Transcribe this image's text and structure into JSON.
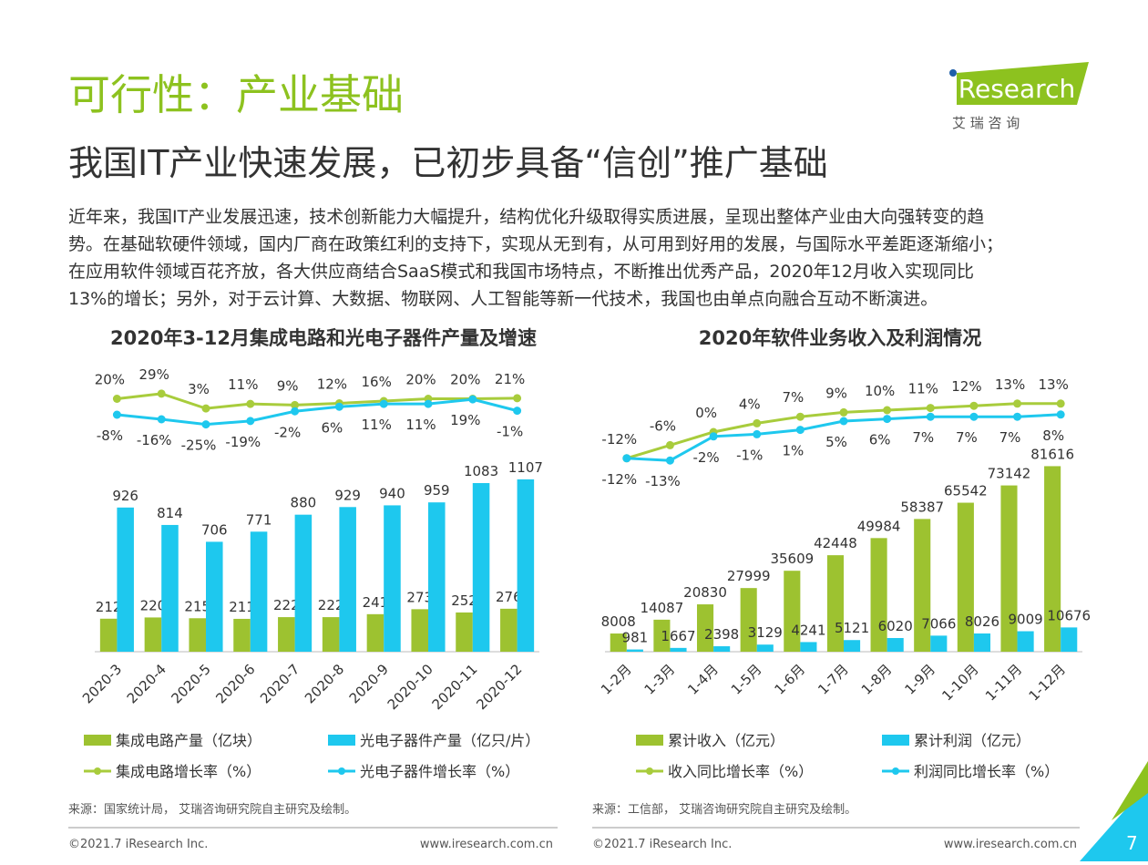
{
  "header": {
    "title": "可行性：产业基础",
    "subtitle": "我国IT产业快速发展，已初步具备“信创”推广基础",
    "body": [
      "近年来，我国IT产业发展迅速，技术创新能力大幅提升，结构优化升级取得实质进展，呈现出整体产业由大向强转变的趋",
      "势。在基础软硬件领域，国内厂商在政策红利的支持下，实现从无到有，从可用到好用的发展，与国际水平差距逐渐缩小；",
      "在应用软件领域百花齐放，各大供应商结合SaaS模式和我国市场特点，不断推出优秀产品，2020年12月收入实现同比",
      "13%的增长；另外，对于云计算、大数据、物联网、人工智能等新一代技术，我国也由单点向融合互动不断演进。"
    ]
  },
  "logo": {
    "brand": "iResearch",
    "name": "艾 瑞 咨 询"
  },
  "chart_data": [
    {
      "type": "bar",
      "title": "2020年3-12月集成电路和光电子器件产量及增速",
      "categories": [
        "2020-3",
        "2020-4",
        "2020-5",
        "2020-6",
        "2020-7",
        "2020-8",
        "2020-9",
        "2020-10",
        "2020-11",
        "2020-12"
      ],
      "ylim": [
        0,
        1200
      ],
      "y2lim": [
        -80,
        80
      ],
      "series": [
        {
          "name": "集成电路产量（亿块）",
          "type": "bar",
          "color": "#9dc230",
          "values": [
            212,
            220,
            215,
            211,
            222,
            222,
            241,
            273,
            252,
            276
          ]
        },
        {
          "name": "光电子器件产量（亿只/片）",
          "type": "bar",
          "color": "#1ec8ee",
          "values": [
            926,
            814,
            706,
            771,
            880,
            929,
            940,
            959,
            1083,
            1107
          ]
        },
        {
          "name": "集成电路增长率（%）",
          "type": "line",
          "axis": "y2",
          "color": "#a8cc3c",
          "values": [
            20,
            29,
            3,
            11,
            9,
            12,
            16,
            20,
            20,
            21
          ],
          "value_labels": [
            "20%",
            "29%",
            "3%",
            "11%",
            "9%",
            "12%",
            "16%",
            "20%",
            "20%",
            "21%"
          ]
        },
        {
          "name": "光电子器件增长率（%）",
          "type": "line",
          "axis": "y2",
          "color": "#1ec8ee",
          "values": [
            -8,
            -16,
            -25,
            -19,
            -2,
            6,
            11,
            11,
            19,
            -1
          ],
          "value_labels": [
            "-8%",
            "-16%",
            "-25%",
            "-19%",
            "-2%",
            "6%",
            "11%",
            "11%",
            "19%",
            "-1%"
          ]
        }
      ],
      "source": "来源：国家统计局， 艾瑞咨询研究院自主研究及绘制。"
    },
    {
      "type": "bar",
      "title": "2020年软件业务收入及利润情况",
      "categories": [
        "1-2月",
        "1-3月",
        "1-4月",
        "1-5月",
        "1-6月",
        "1-7月",
        "1-8月",
        "1-9月",
        "1-10月",
        "1-11月",
        "1-12月"
      ],
      "ylim": [
        0,
        85000
      ],
      "y2lim": [
        -20,
        20
      ],
      "series": [
        {
          "name": "累计收入（亿元）",
          "type": "bar",
          "color": "#9dc230",
          "values": [
            8008,
            14087,
            20830,
            27999,
            35609,
            42448,
            49984,
            58387,
            65542,
            73142,
            81616
          ]
        },
        {
          "name": "累计利润（亿元）",
          "type": "bar",
          "color": "#1ec8ee",
          "values": [
            981,
            1667,
            2398,
            3129,
            4241,
            5121,
            6020,
            7066,
            8026,
            9009,
            10676
          ]
        },
        {
          "name": "收入同比增长率（%）",
          "type": "line",
          "axis": "y2",
          "color": "#a8cc3c",
          "values": [
            -12,
            -6,
            0,
            4,
            7,
            9,
            10,
            11,
            12,
            13,
            13
          ],
          "value_labels": [
            "-12%",
            "-6%",
            "0%",
            "4%",
            "7%",
            "9%",
            "10%",
            "11%",
            "12%",
            "13%",
            "13%"
          ]
        },
        {
          "name": "利润同比增长率（%）",
          "type": "line",
          "axis": "y2",
          "color": "#1ec8ee",
          "values": [
            -12,
            -13,
            -2,
            -1,
            1,
            5,
            6,
            7,
            7,
            7,
            8
          ],
          "value_labels": [
            "-12%",
            "-13%",
            "-2%",
            "-1%",
            "1%",
            "5%",
            "6%",
            "7%",
            "7%",
            "7%",
            "8%"
          ]
        }
      ],
      "source": "来源：工信部， 艾瑞咨询研究院自主研究及绘制。"
    }
  ],
  "footer": {
    "copyright": "©2021.7 iResearch Inc.",
    "url": "www.iresearch.com.cn",
    "page": "7"
  }
}
